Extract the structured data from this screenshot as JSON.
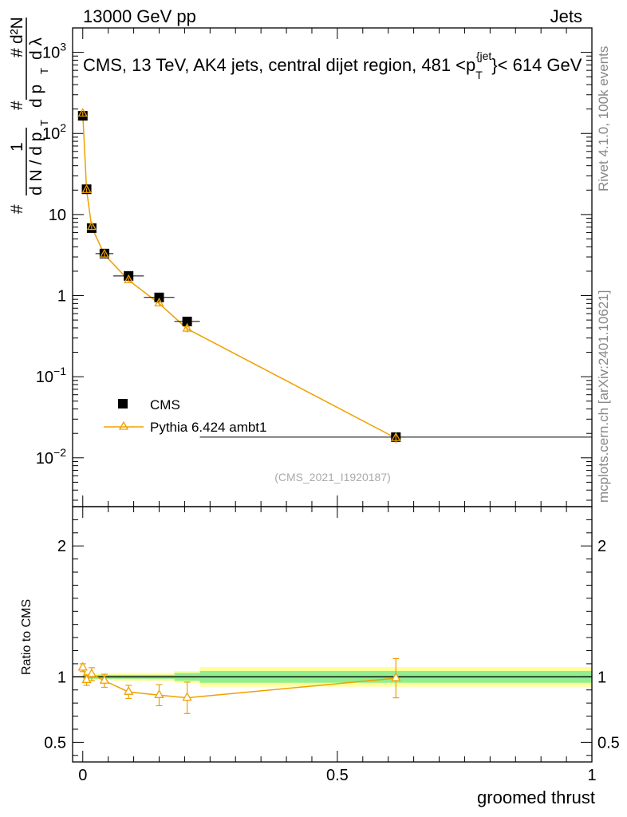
{
  "header": {
    "left": "13000 GeV pp",
    "right": "Jets"
  },
  "side_labels": {
    "rivet": "Rivet 4.1.0,  100k events",
    "mcplots": "mcplots.cern.ch [arXiv:2401.10621]"
  },
  "chart_data": [
    {
      "type": "scatter",
      "panel": "main",
      "title": "CMS, 13 TeV, AK4 jets, central dijet region, 481 < p_T^{jet} < 614 GeV",
      "title_parts": {
        "before": "CMS, 13 TeV, AK4 jets, central dijet region, 481 <p",
        "sub": "T",
        "sup": "{jet",
        "after": "}< 614 GeV"
      },
      "ylabel": "1/(dN/dp_T) d²N/(dp_T dλ)",
      "ylabel_parts": {
        "hash": "#",
        "one": "1",
        "dN_dp": "d N / d p",
        "d2N": "d²N",
        "dpdl": "d p",
        "dl": "d λ",
        "T": "T"
      },
      "yscale": "log",
      "ylim": [
        0.0025,
        2000
      ],
      "xlim": [
        -0.02,
        1.0
      ],
      "y_ticks": [
        {
          "value": 0.01,
          "label": "10",
          "exp": "−2"
        },
        {
          "value": 0.1,
          "label": "10",
          "exp": "−1"
        },
        {
          "value": 1,
          "label": "1",
          "exp": ""
        },
        {
          "value": 10,
          "label": "10",
          "exp": ""
        },
        {
          "value": 100,
          "label": "10",
          "exp": "2"
        },
        {
          "value": 1000,
          "label": "10",
          "exp": "3"
        }
      ],
      "watermark": "(CMS_2021_I1920187)",
      "legend": {
        "position": "lower-left",
        "entries": [
          "CMS",
          "Pythia 6.424 ambt1"
        ]
      },
      "series": [
        {
          "name": "CMS",
          "marker": "square",
          "color": "#000000",
          "x": [
            0.0,
            0.0075,
            0.0175,
            0.0425,
            0.09,
            0.15,
            0.205,
            0.615
          ],
          "xerr": [
            0.0,
            0.0025,
            0.0075,
            0.0175,
            0.03,
            0.03,
            0.025,
            0.385
          ],
          "y": [
            165,
            20.5,
            6.8,
            3.3,
            1.75,
            0.95,
            0.48,
            0.018
          ]
        },
        {
          "name": "Pythia 6.424 ambt1",
          "marker": "open-triangle",
          "color": "#f0a000",
          "x": [
            0.0,
            0.0075,
            0.0175,
            0.0425,
            0.09,
            0.15,
            0.205,
            0.615
          ],
          "y": [
            175,
            20.0,
            7.0,
            3.2,
            1.55,
            0.8,
            0.39,
            0.0175
          ],
          "yerr": [
            10,
            1.0,
            0.4,
            0.2,
            0.1,
            0.06,
            0.04,
            0.0025
          ]
        }
      ]
    },
    {
      "type": "scatter",
      "panel": "ratio",
      "ylabel": "Ratio to CMS",
      "xlabel": "groomed thrust",
      "ylim": [
        0.35,
        2.3
      ],
      "xlim": [
        -0.02,
        1.0
      ],
      "y_ticks": [
        {
          "value": 0.5,
          "label": "0.5"
        },
        {
          "value": 1,
          "label": "1"
        },
        {
          "value": 2,
          "label": "2"
        }
      ],
      "x_ticks": [
        {
          "value": 0,
          "label": "0"
        },
        {
          "value": 0.5,
          "label": "0.5"
        },
        {
          "value": 1,
          "label": "1"
        }
      ],
      "uncertainty_bands": [
        {
          "x0": 0.0,
          "x1": 0.005,
          "inner": [
            0.985,
            1.015
          ],
          "outer": [
            0.97,
            1.03
          ]
        },
        {
          "x0": 0.005,
          "x1": 0.01,
          "inner": [
            0.985,
            1.015
          ],
          "outer": [
            0.97,
            1.03
          ]
        },
        {
          "x0": 0.01,
          "x1": 0.025,
          "inner": [
            0.985,
            1.015
          ],
          "outer": [
            0.97,
            1.03
          ]
        },
        {
          "x0": 0.025,
          "x1": 0.06,
          "inner": [
            0.985,
            1.015
          ],
          "outer": [
            0.975,
            1.025
          ]
        },
        {
          "x0": 0.06,
          "x1": 0.12,
          "inner": [
            0.985,
            1.015
          ],
          "outer": [
            0.97,
            1.03
          ]
        },
        {
          "x0": 0.12,
          "x1": 0.18,
          "inner": [
            0.985,
            1.015
          ],
          "outer": [
            0.97,
            1.03
          ]
        },
        {
          "x0": 0.18,
          "x1": 0.23,
          "inner": [
            0.97,
            1.03
          ],
          "outer": [
            0.955,
            1.045
          ]
        },
        {
          "x0": 0.23,
          "x1": 1.0,
          "inner": [
            0.955,
            1.045
          ],
          "outer": [
            0.925,
            1.075
          ]
        }
      ],
      "band_colors": {
        "inner": "#90ee90",
        "outer": "#ffff99"
      },
      "series": [
        {
          "name": "Pythia 6.424 ambt1",
          "color": "#f0a000",
          "x": [
            0.0,
            0.0075,
            0.0175,
            0.0425,
            0.09,
            0.15,
            0.205,
            0.615
          ],
          "y": [
            1.07,
            0.975,
            1.02,
            0.97,
            0.885,
            0.86,
            0.84,
            0.99
          ],
          "yerr": [
            0.03,
            0.04,
            0.05,
            0.05,
            0.05,
            0.08,
            0.12,
            0.15
          ]
        }
      ]
    }
  ]
}
